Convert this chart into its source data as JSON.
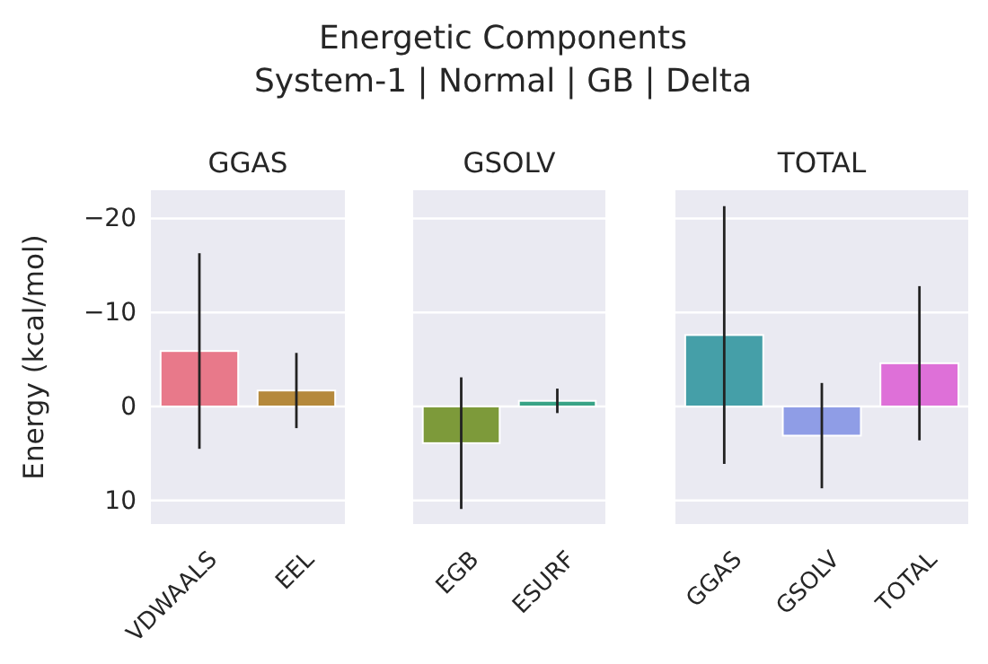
{
  "chart_data": [
    {
      "type": "bar",
      "title": "GGAS",
      "ylabel": "Energy (kcal/mol)",
      "annotations": [
        "Energetic Components",
        "System-1 | Normal | GB | Delta"
      ],
      "categories": [
        "VDWAALS",
        "EEL"
      ],
      "values": [
        -5.9,
        -1.7
      ],
      "errors": [
        10.4,
        4.0
      ],
      "colors": [
        "#e8798a",
        "#b5893c"
      ],
      "ylim": [
        12.5,
        -23
      ],
      "yticks": [
        10,
        0,
        -10,
        -20
      ],
      "grid": "y"
    },
    {
      "type": "bar",
      "title": "GSOLV",
      "categories": [
        "EGB",
        "ESURF"
      ],
      "values": [
        3.9,
        -0.6
      ],
      "errors": [
        7.0,
        1.3
      ],
      "colors": [
        "#7d9a3a",
        "#38a386"
      ],
      "ylim": [
        12.5,
        -23
      ],
      "yticks": [
        10,
        0,
        -10,
        -20
      ],
      "grid": "y",
      "tick_labels": "x"
    },
    {
      "type": "bar",
      "title": "TOTAL",
      "categories": [
        "GGAS",
        "GSOLV",
        "TOTAL"
      ],
      "values": [
        -7.6,
        3.1,
        -4.6
      ],
      "errors": [
        13.7,
        5.6,
        8.2
      ],
      "colors": [
        "#459fa8",
        "#8f9de6",
        "#de70d8"
      ],
      "ylim": [
        12.5,
        -23
      ],
      "yticks": [
        10,
        0,
        -10,
        -20
      ],
      "grid": "y",
      "tick_labels": "x"
    }
  ]
}
